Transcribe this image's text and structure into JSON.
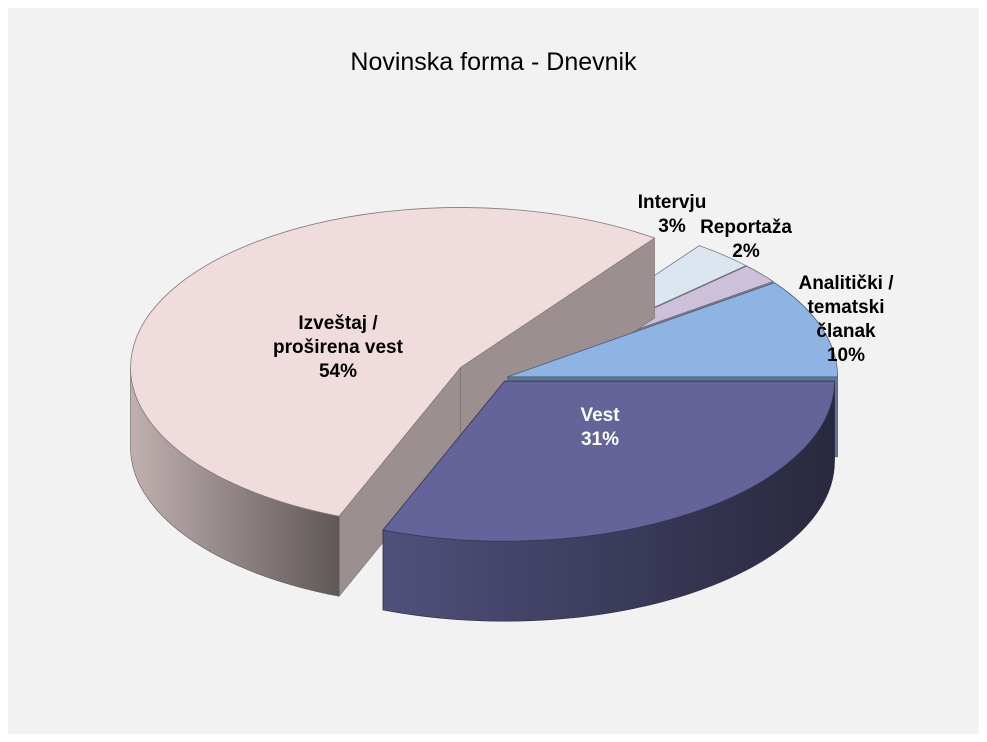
{
  "chart_data": {
    "type": "pie",
    "title": "Novinska forma - Dnevnik",
    "categories": [
      "Vest",
      "Izveštaj / proširena vest",
      "Intervju",
      "Reportaža",
      "Analitički / tematski članak"
    ],
    "values": [
      31,
      54,
      3,
      2,
      10
    ],
    "value_labels": [
      "31%",
      "54%",
      "3%",
      "2%",
      "10%"
    ],
    "colors": [
      "#64649a",
      "#f0dcdc",
      "#dce6f0",
      "#ccc0da",
      "#8db4e2"
    ]
  }
}
